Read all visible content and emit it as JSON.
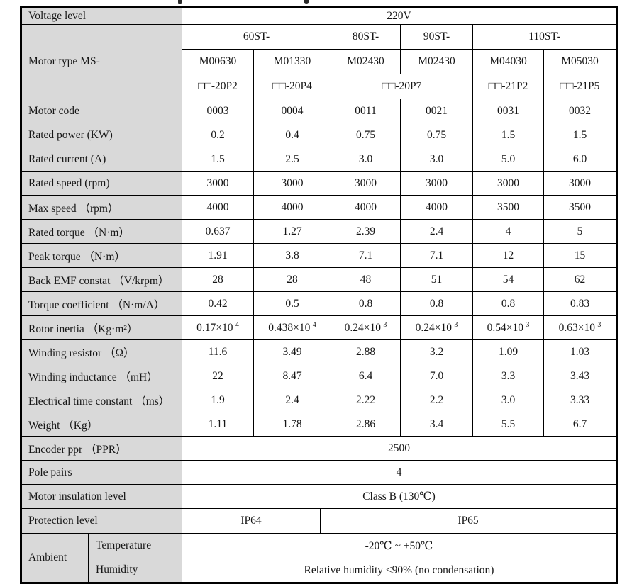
{
  "colors": {
    "label_background": "#d9d9d9",
    "grid_border": "#000000",
    "text": "#161616",
    "page_background": "#ffffff"
  },
  "table": {
    "voltage": {
      "label": "Voltage level",
      "value": "220V"
    },
    "motor_type": {
      "label": "Motor type MS-",
      "series": [
        "60ST-",
        "80ST-",
        "90ST-",
        "110ST-"
      ],
      "models": [
        "M00630",
        "M01330",
        "M02430",
        "M02430",
        "M04030",
        "M05030"
      ],
      "frames": [
        "□□-20P2",
        "□□-20P4",
        "□□-20P7",
        "□□-21P2",
        "□□-21P5"
      ]
    },
    "spec_rows": [
      {
        "label": "Motor code",
        "values": [
          "0003",
          "0004",
          "0011",
          "0021",
          "0031",
          "0032"
        ]
      },
      {
        "label": "Rated power (KW)",
        "values": [
          "0.2",
          "0.4",
          "0.75",
          "0.75",
          "1.5",
          "1.5"
        ]
      },
      {
        "label": "Rated current (A)",
        "values": [
          "1.5",
          "2.5",
          "3.0",
          "3.0",
          "5.0",
          "6.0"
        ]
      },
      {
        "label": "Rated speed (rpm)",
        "values": [
          "3000",
          "3000",
          "3000",
          "3000",
          "3000",
          "3000"
        ]
      },
      {
        "label": "Max speed （rpm）",
        "values": [
          "4000",
          "4000",
          "4000",
          "4000",
          "3500",
          "3500"
        ]
      },
      {
        "label": "Rated torque （N·m）",
        "values": [
          "0.637",
          "1.27",
          "2.39",
          "2.4",
          "4",
          "5"
        ]
      },
      {
        "label": "Peak torque （N·m）",
        "values": [
          "1.91",
          "3.8",
          "7.1",
          "7.1",
          "12",
          "15"
        ]
      },
      {
        "label": "Back EMF constat （V/krpm）",
        "values": [
          "28",
          "28",
          "48",
          "51",
          "54",
          "62"
        ]
      },
      {
        "label": "Torque coefficient （N·m/A）",
        "values": [
          "0.42",
          "0.5",
          "0.8",
          "0.8",
          "0.8",
          "0.83"
        ]
      },
      {
        "label": "Rotor inertia （Kg·m²）",
        "values": [
          "0.17×10<sup>-4</sup>",
          "0.438×10<sup>-4</sup>",
          "0.24×10<sup>-3</sup>",
          "0.24×10<sup>-3</sup>",
          "0.54×10<sup>-3</sup>",
          "0.63×10<sup>-3</sup>"
        ]
      },
      {
        "label": "Winding resistor （Ω）",
        "values": [
          "11.6",
          "3.49",
          "2.88",
          "3.2",
          "1.09",
          "1.03"
        ]
      },
      {
        "label": "Winding inductance （mH）",
        "values": [
          "22",
          "8.47",
          "6.4",
          "7.0",
          "3.3",
          "3.43"
        ]
      },
      {
        "label": "Electrical time constant （ms）",
        "values": [
          "1.9",
          "2.4",
          "2.22",
          "2.2",
          "3.0",
          "3.33"
        ]
      },
      {
        "label": "Weight （Kg）",
        "values": [
          "1.11",
          "1.78",
          "2.86",
          "3.4",
          "5.5",
          "6.7"
        ]
      }
    ],
    "merged_rows": [
      {
        "label": "Encoder ppr （PPR）",
        "value": "2500"
      },
      {
        "label": "Pole pairs",
        "value": "4"
      },
      {
        "label": "Motor insulation level",
        "value": "Class B (130℃)"
      }
    ],
    "protection": {
      "label": "Protection level",
      "left": "IP64",
      "right": "IP65"
    },
    "ambient": {
      "label": "Ambient",
      "temperature_label": "Temperature",
      "temperature_value": "-20℃ ~ +50℃",
      "humidity_label": "Humidity",
      "humidity_value": "Relative humidity <90% (no condensation)"
    }
  }
}
